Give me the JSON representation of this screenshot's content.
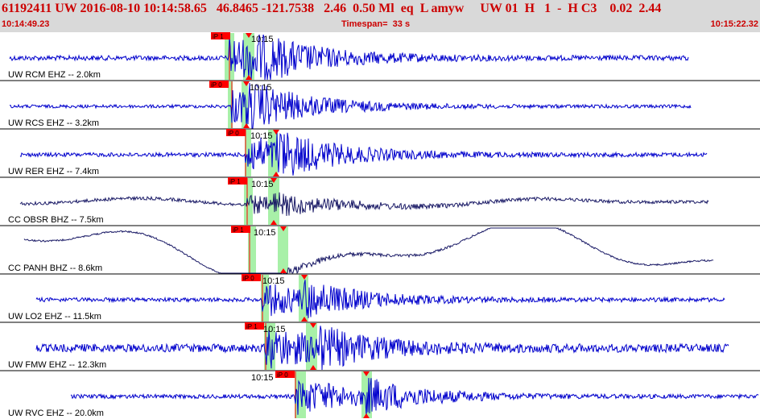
{
  "header": {
    "title": "61192411 UW 2016-08-10 10:14:58.65   46.8465 -121.7538   2.46  0.50 Ml  eq  L amyw     UW 01  H   1  -  H C3    0.02  2.44",
    "start_time": "10:14:49.23",
    "timespan": "Timespan=  33 s",
    "end_time": "10:15:22.32"
  },
  "colors": {
    "header_bg": "#d9d9d9",
    "header_text": "#cc0000",
    "trace_primary": "#0000cc",
    "trace_secondary": "#1a1a66",
    "pick_flag": "#ff0000",
    "pick_window": "#a8f0a8",
    "separator": "#000000"
  },
  "traces": [
    {
      "label": "UW RCM EHZ -- 2.0km",
      "pick": "iP 1",
      "time_mark": "10:15",
      "color": "primary"
    },
    {
      "label": "UW RCS EHZ -- 3.2km",
      "pick": "iP 0",
      "time_mark": "10:15",
      "color": "primary"
    },
    {
      "label": "UW RER EHZ -- 7.4km",
      "pick": "iP 0",
      "time_mark": "10:15",
      "color": "primary"
    },
    {
      "label": "CC OBSR BHZ -- 7.5km",
      "pick": "iP 1",
      "time_mark": "10:15",
      "color": "secondary"
    },
    {
      "label": "CC PANH BHZ -- 8.6km",
      "pick": "iP 1",
      "time_mark": "10:15",
      "color": "secondary"
    },
    {
      "label": "UW LO2 EHZ -- 11.5km",
      "pick": "iP 0",
      "time_mark": "10:15",
      "color": "primary"
    },
    {
      "label": "UW FMW EHZ -- 12.3km",
      "pick": "iP 1",
      "time_mark": "10:15",
      "color": "primary"
    },
    {
      "label": "UW RVC EHZ -- 20.0km",
      "pick": "iP 0",
      "time_mark": "10:15",
      "color": "primary"
    }
  ]
}
